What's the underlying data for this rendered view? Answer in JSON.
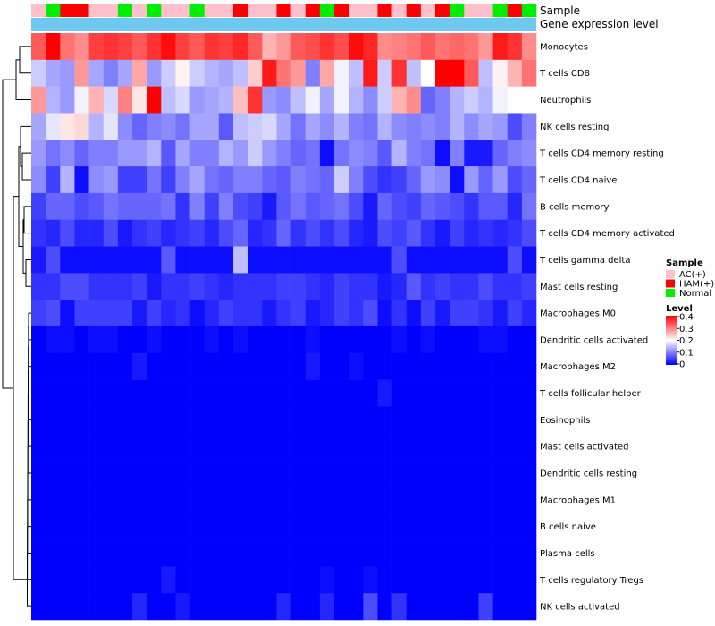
{
  "chart_data": {
    "type": "heatmap",
    "title": "",
    "track_labels": {
      "sample": "Sample",
      "gene_expression": "Gene expression level"
    },
    "rows": [
      "Monocytes",
      "T cells CD8",
      "Neutrophils",
      "NK cells resting",
      "T cells CD4 memory resting",
      "T cells CD4 naive",
      "B cells memory",
      "T cells CD4 memory activated",
      "T cells gamma delta",
      "Mast cells resting",
      "Macrophages M0",
      "Dendritic cells activated",
      "Macrophages M2",
      "T cells follicular helper",
      "Eosinophils",
      "Mast cells activated",
      "Dendritic cells resting",
      "Macrophages M1",
      "B cells naive",
      "Plasma cells",
      "T cells regulatory  Tregs",
      "NK cells activated"
    ],
    "sample_groups": [
      "AC(+)",
      "Normal",
      "HAM(+)",
      "HAM(+)",
      "AC(+)",
      "AC(+)",
      "Normal",
      "AC(+)",
      "Normal",
      "AC(+)",
      "AC(+)",
      "Normal",
      "AC(+)",
      "AC(+)",
      "HAM(+)",
      "AC(+)",
      "AC(+)",
      "HAM(+)",
      "AC(+)",
      "HAM(+)",
      "Normal",
      "HAM(+)",
      "AC(+)",
      "AC(+)",
      "HAM(+)",
      "AC(+)",
      "HAM(+)",
      "AC(+)",
      "HAM(+)",
      "Normal",
      "AC(+)",
      "AC(+)",
      "Normal",
      "HAM(+)",
      "Normal"
    ],
    "gene_expression_color": "#6ec8f0",
    "values": [
      [
        0.33,
        0.4,
        0.31,
        0.29,
        0.35,
        0.36,
        0.35,
        0.33,
        0.36,
        0.39,
        0.35,
        0.33,
        0.36,
        0.35,
        0.37,
        0.33,
        0.26,
        0.28,
        0.33,
        0.34,
        0.36,
        0.34,
        0.39,
        0.37,
        0.29,
        0.3,
        0.31,
        0.33,
        0.31,
        0.32,
        0.31,
        0.28,
        0.38,
        0.36,
        0.29
      ],
      [
        0.16,
        0.13,
        0.12,
        0.28,
        0.13,
        0.1,
        0.13,
        0.27,
        0.12,
        0.16,
        0.21,
        0.16,
        0.14,
        0.13,
        0.15,
        0.24,
        0.38,
        0.31,
        0.28,
        0.1,
        0.27,
        0.19,
        0.15,
        0.38,
        0.16,
        0.36,
        0.15,
        0.2,
        0.4,
        0.4,
        0.33,
        0.15,
        0.21,
        0.26,
        0.31
      ],
      [
        0.28,
        0.14,
        0.12,
        0.19,
        0.26,
        0.17,
        0.3,
        0.22,
        0.4,
        0.15,
        0.17,
        0.12,
        0.13,
        0.14,
        0.25,
        0.36,
        0.12,
        0.11,
        0.15,
        0.19,
        0.13,
        0.19,
        0.14,
        0.11,
        0.16,
        0.26,
        0.29,
        0.08,
        0.1,
        0.14,
        0.16,
        0.14,
        0.19,
        0.2,
        0.2
      ],
      [
        0.13,
        0.18,
        0.22,
        0.23,
        0.14,
        0.18,
        0.11,
        0.08,
        0.1,
        0.11,
        0.09,
        0.13,
        0.13,
        0.07,
        0.15,
        0.16,
        0.17,
        0.13,
        0.09,
        0.13,
        0.11,
        0.14,
        0.1,
        0.09,
        0.14,
        0.11,
        0.1,
        0.11,
        0.1,
        0.14,
        0.11,
        0.13,
        0.12,
        0.06,
        0.1
      ],
      [
        0.12,
        0.09,
        0.11,
        0.08,
        0.1,
        0.1,
        0.12,
        0.12,
        0.14,
        0.07,
        0.13,
        0.1,
        0.1,
        0.14,
        0.12,
        0.16,
        0.12,
        0.1,
        0.08,
        0.09,
        0.01,
        0.09,
        0.11,
        0.1,
        0.07,
        0.14,
        0.1,
        0.09,
        0.01,
        0.1,
        0.02,
        0.02,
        0.08,
        0.1,
        0.11
      ],
      [
        0.11,
        0.05,
        0.14,
        0.01,
        0.11,
        0.12,
        0.05,
        0.05,
        0.09,
        0.05,
        0.1,
        0.13,
        0.09,
        0.08,
        0.1,
        0.1,
        0.08,
        0.07,
        0.1,
        0.09,
        0.08,
        0.16,
        0.1,
        0.06,
        0.04,
        0.05,
        0.08,
        0.12,
        0.11,
        0.01,
        0.12,
        0.08,
        0.12,
        0.06,
        0.08
      ],
      [
        0.05,
        0.08,
        0.08,
        0.06,
        0.07,
        0.09,
        0.08,
        0.08,
        0.08,
        0.09,
        0.04,
        0.1,
        0.05,
        0.1,
        0.06,
        0.05,
        0.02,
        0.07,
        0.09,
        0.07,
        0.08,
        0.09,
        0.06,
        0.02,
        0.08,
        0.06,
        0.05,
        0.08,
        0.07,
        0.06,
        0.04,
        0.07,
        0.07,
        0.03,
        0.09
      ],
      [
        0.04,
        0.03,
        0.06,
        0.03,
        0.03,
        0.06,
        0.02,
        0.04,
        0.05,
        0.03,
        0.04,
        0.05,
        0.03,
        0.06,
        0.08,
        0.03,
        0.04,
        0.08,
        0.04,
        0.06,
        0.04,
        0.06,
        0.03,
        0.02,
        0.06,
        0.05,
        0.07,
        0.04,
        0.02,
        0.05,
        0.03,
        0.04,
        0.03,
        0.04,
        0.06
      ],
      [
        0.02,
        0.06,
        0.01,
        0.01,
        0.01,
        0.01,
        0.01,
        0.01,
        0.01,
        0.07,
        0.01,
        0.01,
        0.01,
        0.01,
        0.15,
        0.01,
        0.01,
        0.01,
        0.01,
        0.01,
        0.01,
        0.01,
        0.01,
        0.01,
        0.01,
        0.06,
        0.01,
        0.01,
        0.01,
        0.01,
        0.01,
        0.01,
        0.01,
        0.06,
        0.01
      ],
      [
        0.04,
        0.04,
        0.06,
        0.06,
        0.04,
        0.04,
        0.04,
        0.05,
        0.02,
        0.04,
        0.04,
        0.05,
        0.04,
        0.03,
        0.04,
        0.04,
        0.04,
        0.05,
        0.05,
        0.04,
        0.03,
        0.05,
        0.04,
        0.04,
        0.02,
        0.03,
        0.07,
        0.04,
        0.05,
        0.04,
        0.04,
        0.06,
        0.04,
        0.04,
        0.05
      ],
      [
        0.05,
        0.06,
        0.01,
        0.05,
        0.05,
        0.05,
        0.05,
        0.02,
        0.05,
        0.03,
        0.04,
        0.01,
        0.03,
        0.05,
        0.04,
        0.04,
        0.02,
        0.04,
        0.05,
        0.02,
        0.03,
        0.05,
        0.04,
        0.06,
        0.01,
        0.04,
        0.01,
        0.05,
        0.02,
        0.05,
        0.05,
        0.04,
        0.02,
        0.05,
        0.03
      ],
      [
        0.0,
        0.01,
        0.01,
        0.0,
        0.01,
        0.01,
        0.0,
        0.0,
        0.01,
        0.0,
        0.0,
        0.0,
        0.01,
        0.0,
        0.01,
        0.0,
        0.0,
        0.0,
        0.0,
        0.01,
        0.0,
        0.0,
        0.0,
        0.0,
        0.0,
        0.01,
        0.0,
        0.01,
        0.0,
        0.0,
        0.0,
        0.01,
        0.01,
        0.0,
        0.0
      ],
      [
        0.0,
        0.0,
        0.0,
        0.0,
        0.0,
        0.0,
        0.0,
        0.02,
        0.0,
        0.0,
        0.0,
        0.0,
        0.0,
        0.0,
        0.0,
        0.0,
        0.0,
        0.0,
        0.0,
        0.02,
        0.0,
        0.0,
        0.01,
        0.0,
        0.0,
        0.0,
        0.0,
        0.0,
        0.0,
        0.0,
        0.0,
        0.0,
        0.0,
        0.0,
        0.0
      ],
      [
        0.0,
        0.0,
        0.0,
        0.0,
        0.0,
        0.0,
        0.0,
        0.0,
        0.0,
        0.0,
        0.0,
        0.0,
        0.0,
        0.0,
        0.0,
        0.0,
        0.0,
        0.0,
        0.0,
        0.0,
        0.0,
        0.0,
        0.0,
        0.0,
        0.02,
        0.0,
        0.0,
        0.0,
        0.0,
        0.0,
        0.0,
        0.0,
        0.0,
        0.0,
        0.0
      ],
      [
        0.0,
        0.0,
        0.0,
        0.0,
        0.0,
        0.0,
        0.0,
        0.0,
        0.0,
        0.0,
        0.0,
        0.0,
        0.0,
        0.0,
        0.0,
        0.0,
        0.0,
        0.0,
        0.0,
        0.0,
        0.0,
        0.0,
        0.0,
        0.0,
        0.0,
        0.0,
        0.0,
        0.0,
        0.0,
        0.0,
        0.0,
        0.0,
        0.0,
        0.0,
        0.0
      ],
      [
        0.0,
        0.0,
        0.0,
        0.0,
        0.0,
        0.0,
        0.0,
        0.0,
        0.0,
        0.0,
        0.0,
        0.0,
        0.0,
        0.0,
        0.0,
        0.0,
        0.0,
        0.0,
        0.0,
        0.0,
        0.0,
        0.0,
        0.0,
        0.0,
        0.0,
        0.0,
        0.0,
        0.0,
        0.0,
        0.0,
        0.0,
        0.0,
        0.0,
        0.0,
        0.0
      ],
      [
        0.0,
        0.0,
        0.0,
        0.0,
        0.0,
        0.0,
        0.0,
        0.0,
        0.0,
        0.0,
        0.0,
        0.0,
        0.0,
        0.0,
        0.0,
        0.0,
        0.0,
        0.0,
        0.0,
        0.0,
        0.0,
        0.0,
        0.0,
        0.0,
        0.0,
        0.0,
        0.0,
        0.0,
        0.0,
        0.0,
        0.0,
        0.0,
        0.0,
        0.0,
        0.0
      ],
      [
        0.0,
        0.0,
        0.0,
        0.0,
        0.0,
        0.0,
        0.0,
        0.0,
        0.0,
        0.0,
        0.0,
        0.0,
        0.0,
        0.0,
        0.0,
        0.0,
        0.0,
        0.0,
        0.0,
        0.0,
        0.0,
        0.0,
        0.0,
        0.0,
        0.0,
        0.0,
        0.0,
        0.0,
        0.0,
        0.0,
        0.0,
        0.0,
        0.0,
        0.0,
        0.0
      ],
      [
        0.0,
        0.0,
        0.0,
        0.0,
        0.0,
        0.0,
        0.0,
        0.0,
        0.0,
        0.0,
        0.0,
        0.0,
        0.0,
        0.0,
        0.0,
        0.0,
        0.0,
        0.0,
        0.0,
        0.0,
        0.0,
        0.0,
        0.0,
        0.0,
        0.0,
        0.0,
        0.0,
        0.0,
        0.0,
        0.0,
        0.0,
        0.0,
        0.0,
        0.0,
        0.0
      ],
      [
        0.0,
        0.0,
        0.0,
        0.0,
        0.0,
        0.0,
        0.0,
        0.0,
        0.0,
        0.0,
        0.0,
        0.0,
        0.0,
        0.0,
        0.0,
        0.0,
        0.0,
        0.0,
        0.0,
        0.0,
        0.0,
        0.0,
        0.0,
        0.0,
        0.0,
        0.0,
        0.0,
        0.0,
        0.0,
        0.0,
        0.0,
        0.0,
        0.0,
        0.0,
        0.0
      ],
      [
        0.0,
        0.0,
        0.0,
        0.0,
        0.0,
        0.0,
        0.0,
        0.0,
        0.0,
        0.02,
        0.0,
        0.0,
        0.0,
        0.0,
        0.0,
        0.0,
        0.0,
        0.0,
        0.0,
        0.0,
        0.01,
        0.0,
        0.0,
        0.01,
        0.0,
        0.0,
        0.0,
        0.0,
        0.0,
        0.0,
        0.0,
        0.0,
        0.0,
        0.0,
        0.0
      ],
      [
        0.0,
        0.0,
        0.0,
        0.0,
        0.0,
        0.0,
        0.0,
        0.03,
        0.0,
        0.0,
        0.02,
        0.0,
        0.0,
        0.0,
        0.0,
        0.0,
        0.0,
        0.03,
        0.0,
        0.0,
        0.03,
        0.0,
        0.0,
        0.06,
        0.0,
        0.04,
        0.0,
        0.0,
        0.0,
        0.0,
        0.0,
        0.05,
        0.0,
        0.0,
        0.0
      ]
    ],
    "legend": {
      "sample_title": "Sample",
      "sample_items": [
        {
          "label": "AC(+)",
          "color": "#ffc0cb"
        },
        {
          "label": "HAM(+)",
          "color": "#ff0000"
        },
        {
          "label": "Normal",
          "color": "#00ee00"
        }
      ],
      "level_title": "Level",
      "level_ticks": [
        "0.4",
        "0.3",
        "0.2",
        "0.1",
        "0"
      ],
      "level_range": [
        0,
        0.4
      ]
    },
    "colors": {
      "low": "#0000ff",
      "mid": "#ffffff",
      "high": "#ff0000"
    }
  }
}
